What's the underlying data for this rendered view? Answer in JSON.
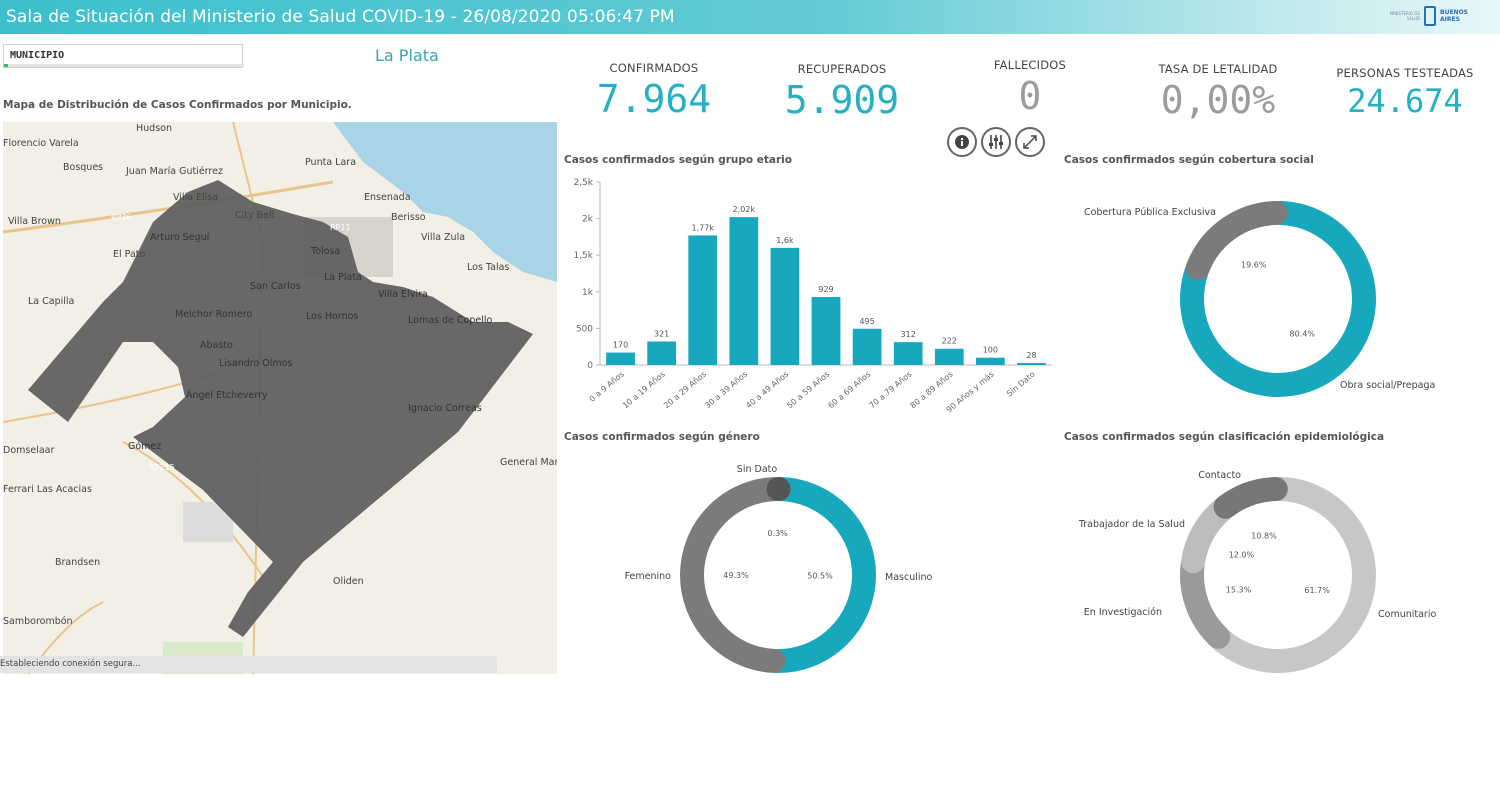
{
  "header": {
    "title": "Sala de Situación del Ministerio de Salud COVID-19 - 26/08/2020 05:06:47 PM",
    "brand_small": "MINISTERIO DE SALUD",
    "brand_name": "BUENOS AIRES"
  },
  "filter": {
    "label": "MUNICIPIO",
    "selected": "La Plata"
  },
  "map": {
    "title": "Mapa de Distribución de Casos Confirmados por Municipio.",
    "labels": [
      "Hudson",
      "Florencio Varela",
      "Bosques",
      "Juan María Gutiérrez",
      "Villa Elisa",
      "Punta Lara",
      "Villa Brown",
      "City Bell",
      "Ensenada",
      "Berisso",
      "RP36",
      "RP11",
      "Arturo Seguí",
      "El Pato",
      "Tolosa",
      "Villa Zula",
      "Los Talas",
      "La Plata",
      "San Carlos",
      "Villa Elvira",
      "La Capilla",
      "Melchor Romero",
      "Los Hornos",
      "Lomas de Copello",
      "Abasto",
      "Lisandro Olmos",
      "Ángel Etcheverry",
      "Ignacio Correas",
      "Domselaar",
      "Gómez",
      "RP215",
      "General Mansilla",
      "Ferrari Las Acacias",
      "Brandsen",
      "Oliden",
      "Samborombón"
    ],
    "status": "Estableciendo conexión segura..."
  },
  "kpis": {
    "confirmados": {
      "label": "CONFIRMADOS",
      "value": "7.964"
    },
    "recuperados": {
      "label": "RECUPERADOS",
      "value": "5.909"
    },
    "fallecidos": {
      "label": "FALLECIDOS",
      "value": "0"
    },
    "letalidad": {
      "label": "TASA DE LETALIDAD",
      "value": "0,00%"
    },
    "testeadas": {
      "label": "PERSONAS TESTEADAS",
      "value": "24.674"
    }
  },
  "toolbar": {
    "icons": [
      "info-icon",
      "sliders-icon",
      "expand-icon"
    ]
  },
  "colors": {
    "teal": "#17a8bd",
    "dark_gray": "#7b7b7b",
    "mid_gray": "#9a9a9a",
    "light_gray": "#bdbdbd",
    "lighter_gray": "#c7c7c7",
    "map_polygon": "#5e5e5e"
  },
  "chart_data": [
    {
      "type": "bar",
      "title": "Casos confirmados según grupo etario",
      "categories": [
        "0 a 9 Años",
        "10 a 19 Años",
        "20 a 29 Años",
        "30 a 39 Años",
        "40 a 49 Años",
        "50 a 59 Años",
        "60 a 69 Años",
        "70 a 79 Años",
        "80 a 89 Años",
        "90 Años y más",
        "Sin Dato"
      ],
      "values": [
        170,
        321,
        1770,
        2020,
        1600,
        929,
        495,
        312,
        222,
        100,
        28
      ],
      "value_labels": [
        "170",
        "321",
        "1,77k",
        "2,02k",
        "1,6k",
        "929",
        "495",
        "312",
        "222",
        "100",
        "28"
      ],
      "y_ticks": [
        "0",
        "500",
        "1k",
        "1,5k",
        "2k",
        "2,5k"
      ],
      "ylim": [
        0,
        2500
      ]
    },
    {
      "type": "pie",
      "title": "Casos confirmados según cobertura social",
      "slices": [
        {
          "name": "Obra social/Prepaga",
          "value": 80.4,
          "label": "80.4%",
          "color": "#17a8bd"
        },
        {
          "name": "Cobertura Pública Exclusiva",
          "value": 19.6,
          "label": "19.6%",
          "color": "#7b7b7b"
        }
      ]
    },
    {
      "type": "pie",
      "title": "Casos confirmados según género",
      "slices": [
        {
          "name": "Masculino",
          "value": 50.5,
          "label": "50.5%",
          "color": "#17a8bd"
        },
        {
          "name": "Femenino",
          "value": 49.3,
          "label": "49.3%",
          "color": "#7b7b7b"
        },
        {
          "name": "Sin Dato",
          "value": 0.3,
          "label": "0.3%",
          "color": "#555555"
        }
      ]
    },
    {
      "type": "pie",
      "title": "Casos confirmados según clasificación epidemiológica",
      "slices": [
        {
          "name": "Comunitario",
          "value": 61.7,
          "label": "61.7%",
          "color": "#c7c7c7"
        },
        {
          "name": "En Investigación",
          "value": 15.3,
          "label": "15.3%",
          "color": "#9a9a9a"
        },
        {
          "name": "Trabajador de la Salud",
          "value": 12.0,
          "label": "12.0%",
          "color": "#bdbdbd"
        },
        {
          "name": "Contacto",
          "value": 10.8,
          "label": "10.8%",
          "color": "#777777"
        }
      ]
    }
  ]
}
